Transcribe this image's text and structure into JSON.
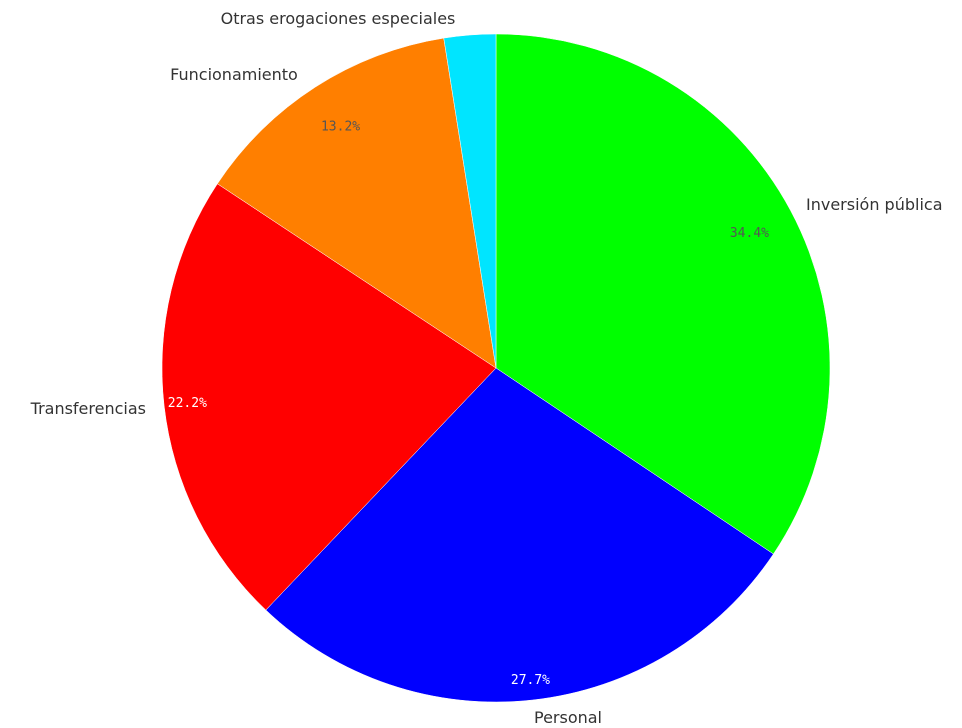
{
  "chart_data": {
    "type": "pie",
    "title": "",
    "start_angle_deg": 0,
    "direction": "clockwise",
    "slices": [
      {
        "label": "Inversión pública",
        "value": 34.4,
        "pct_label": "34.4%",
        "color": "#00ff00",
        "pct_color": "#555555"
      },
      {
        "label": "Personal",
        "value": 27.7,
        "pct_label": "27.7%",
        "color": "#0000ff",
        "pct_color": "#ffffff"
      },
      {
        "label": "Transferencias",
        "value": 22.2,
        "pct_label": "22.2%",
        "color": "#ff0000",
        "pct_color": "#ffffff"
      },
      {
        "label": "Funcionamiento",
        "value": 13.2,
        "pct_label": "13.2%",
        "color": "#ff7f00",
        "pct_color": "#555555"
      },
      {
        "label": "Otras erogaciones especiales",
        "value": 2.5,
        "pct_label": "",
        "color": "#00e5ff",
        "pct_color": "#555555"
      }
    ]
  }
}
